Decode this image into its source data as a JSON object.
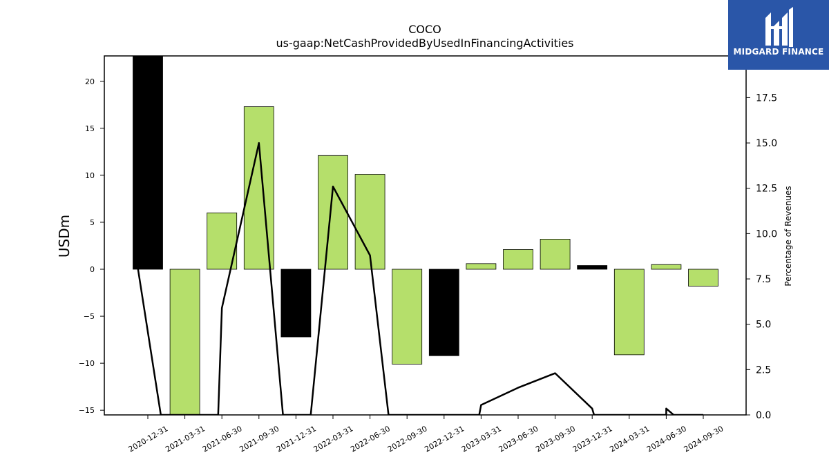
{
  "chart_data": {
    "type": "bar",
    "title": "COCO",
    "subtitle": "us-gaap:NetCashProvidedByUsedInFinancingActivities",
    "ylabel": "USDm",
    "y2label": "Percentage of Revenues",
    "categories": [
      "2020-12-31",
      "2021-03-31",
      "2021-06-30",
      "2021-09-30",
      "2021-12-31",
      "2022-03-31",
      "2022-06-30",
      "2022-09-30",
      "2022-12-31",
      "2023-03-31",
      "2023-06-30",
      "2023-09-30",
      "2023-12-31",
      "2024-03-31",
      "2024-06-30",
      "2024-09-30"
    ],
    "values": [
      22.8,
      -15.6,
      6.0,
      17.3,
      -7.2,
      12.1,
      10.1,
      -10.1,
      -9.2,
      0.6,
      2.1,
      3.2,
      0.4,
      -9.1,
      0.5,
      -1.8
    ],
    "bar_colors": [
      "#000000",
      "#b5df6b",
      "#b5df6b",
      "#b5df6b",
      "#000000",
      "#b5df6b",
      "#b5df6b",
      "#b5df6b",
      "#000000",
      "#b5df6b",
      "#b5df6b",
      "#b5df6b",
      "#000000",
      "#b5df6b",
      "#b5df6b",
      "#b5df6b"
    ],
    "ylim": [
      -15.5,
      22.7
    ],
    "yticks": [
      -15,
      -10,
      -5,
      0,
      5,
      10,
      15,
      20
    ],
    "y2lim": [
      0,
      19.8
    ],
    "y2ticks": [
      "0.0",
      "2.5",
      "5.0",
      "7.5",
      "10.0",
      "12.5",
      "15.0",
      "17.5"
    ],
    "line_values": [
      null,
      null,
      null,
      15.0,
      null,
      12.6,
      8.8,
      null,
      null,
      0.55,
      1.5,
      2.3,
      0.35,
      null,
      null,
      null
    ],
    "line_points": [
      {
        "x": -0.3,
        "y2": 8.5
      },
      {
        "x": 0.35,
        "y2": 0.0
      },
      {
        "x": 1.9,
        "y2": 0.0
      },
      {
        "x": 2.0,
        "y2": 5.9
      },
      {
        "x": 3.0,
        "y2": 15.0
      },
      {
        "x": 3.65,
        "y2": 0.0
      },
      {
        "x": 4.4,
        "y2": 0.0
      },
      {
        "x": 5.0,
        "y2": 12.6
      },
      {
        "x": 6.0,
        "y2": 8.8
      },
      {
        "x": 6.5,
        "y2": 0.0
      },
      {
        "x": 8.95,
        "y2": 0.0
      },
      {
        "x": 9.0,
        "y2": 0.55
      },
      {
        "x": 10.0,
        "y2": 1.5
      },
      {
        "x": 11.0,
        "y2": 2.3
      },
      {
        "x": 12.0,
        "y2": 0.35
      },
      {
        "x": 12.05,
        "y2": 0.0
      },
      {
        "x": 14.0,
        "y2": 0.0
      },
      {
        "x": 14.0,
        "y2": 0.35
      },
      {
        "x": 14.2,
        "y2": 0.0
      },
      {
        "x": 15.0,
        "y2": 0.0
      }
    ],
    "grid": false,
    "legend": "none"
  },
  "logo": {
    "text": "MIDGARD FINANCE",
    "background": "#2a56a8"
  }
}
